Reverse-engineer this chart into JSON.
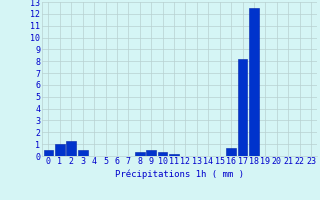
{
  "categories": [
    0,
    1,
    2,
    3,
    4,
    5,
    6,
    7,
    8,
    9,
    10,
    11,
    12,
    13,
    14,
    15,
    16,
    17,
    18,
    19,
    20,
    21,
    22,
    23
  ],
  "values": [
    0.5,
    1.0,
    1.3,
    0.5,
    0.0,
    0.0,
    0.0,
    0.0,
    0.3,
    0.5,
    0.3,
    0.2,
    0.0,
    0.0,
    0.0,
    0.0,
    0.7,
    8.2,
    12.5,
    0.0,
    0.0,
    0.0,
    0.0,
    0.0
  ],
  "bar_color": "#0033cc",
  "bar_edge_color": "#0022aa",
  "background_color": "#d5f5f5",
  "grid_color": "#b8d0d0",
  "text_color": "#0000cc",
  "xlabel": "Précipitations 1h ( mm )",
  "ylim": [
    0,
    13
  ],
  "yticks": [
    0,
    1,
    2,
    3,
    4,
    5,
    6,
    7,
    8,
    9,
    10,
    11,
    12,
    13
  ],
  "xlabel_fontsize": 6.5,
  "tick_fontsize": 6.0
}
